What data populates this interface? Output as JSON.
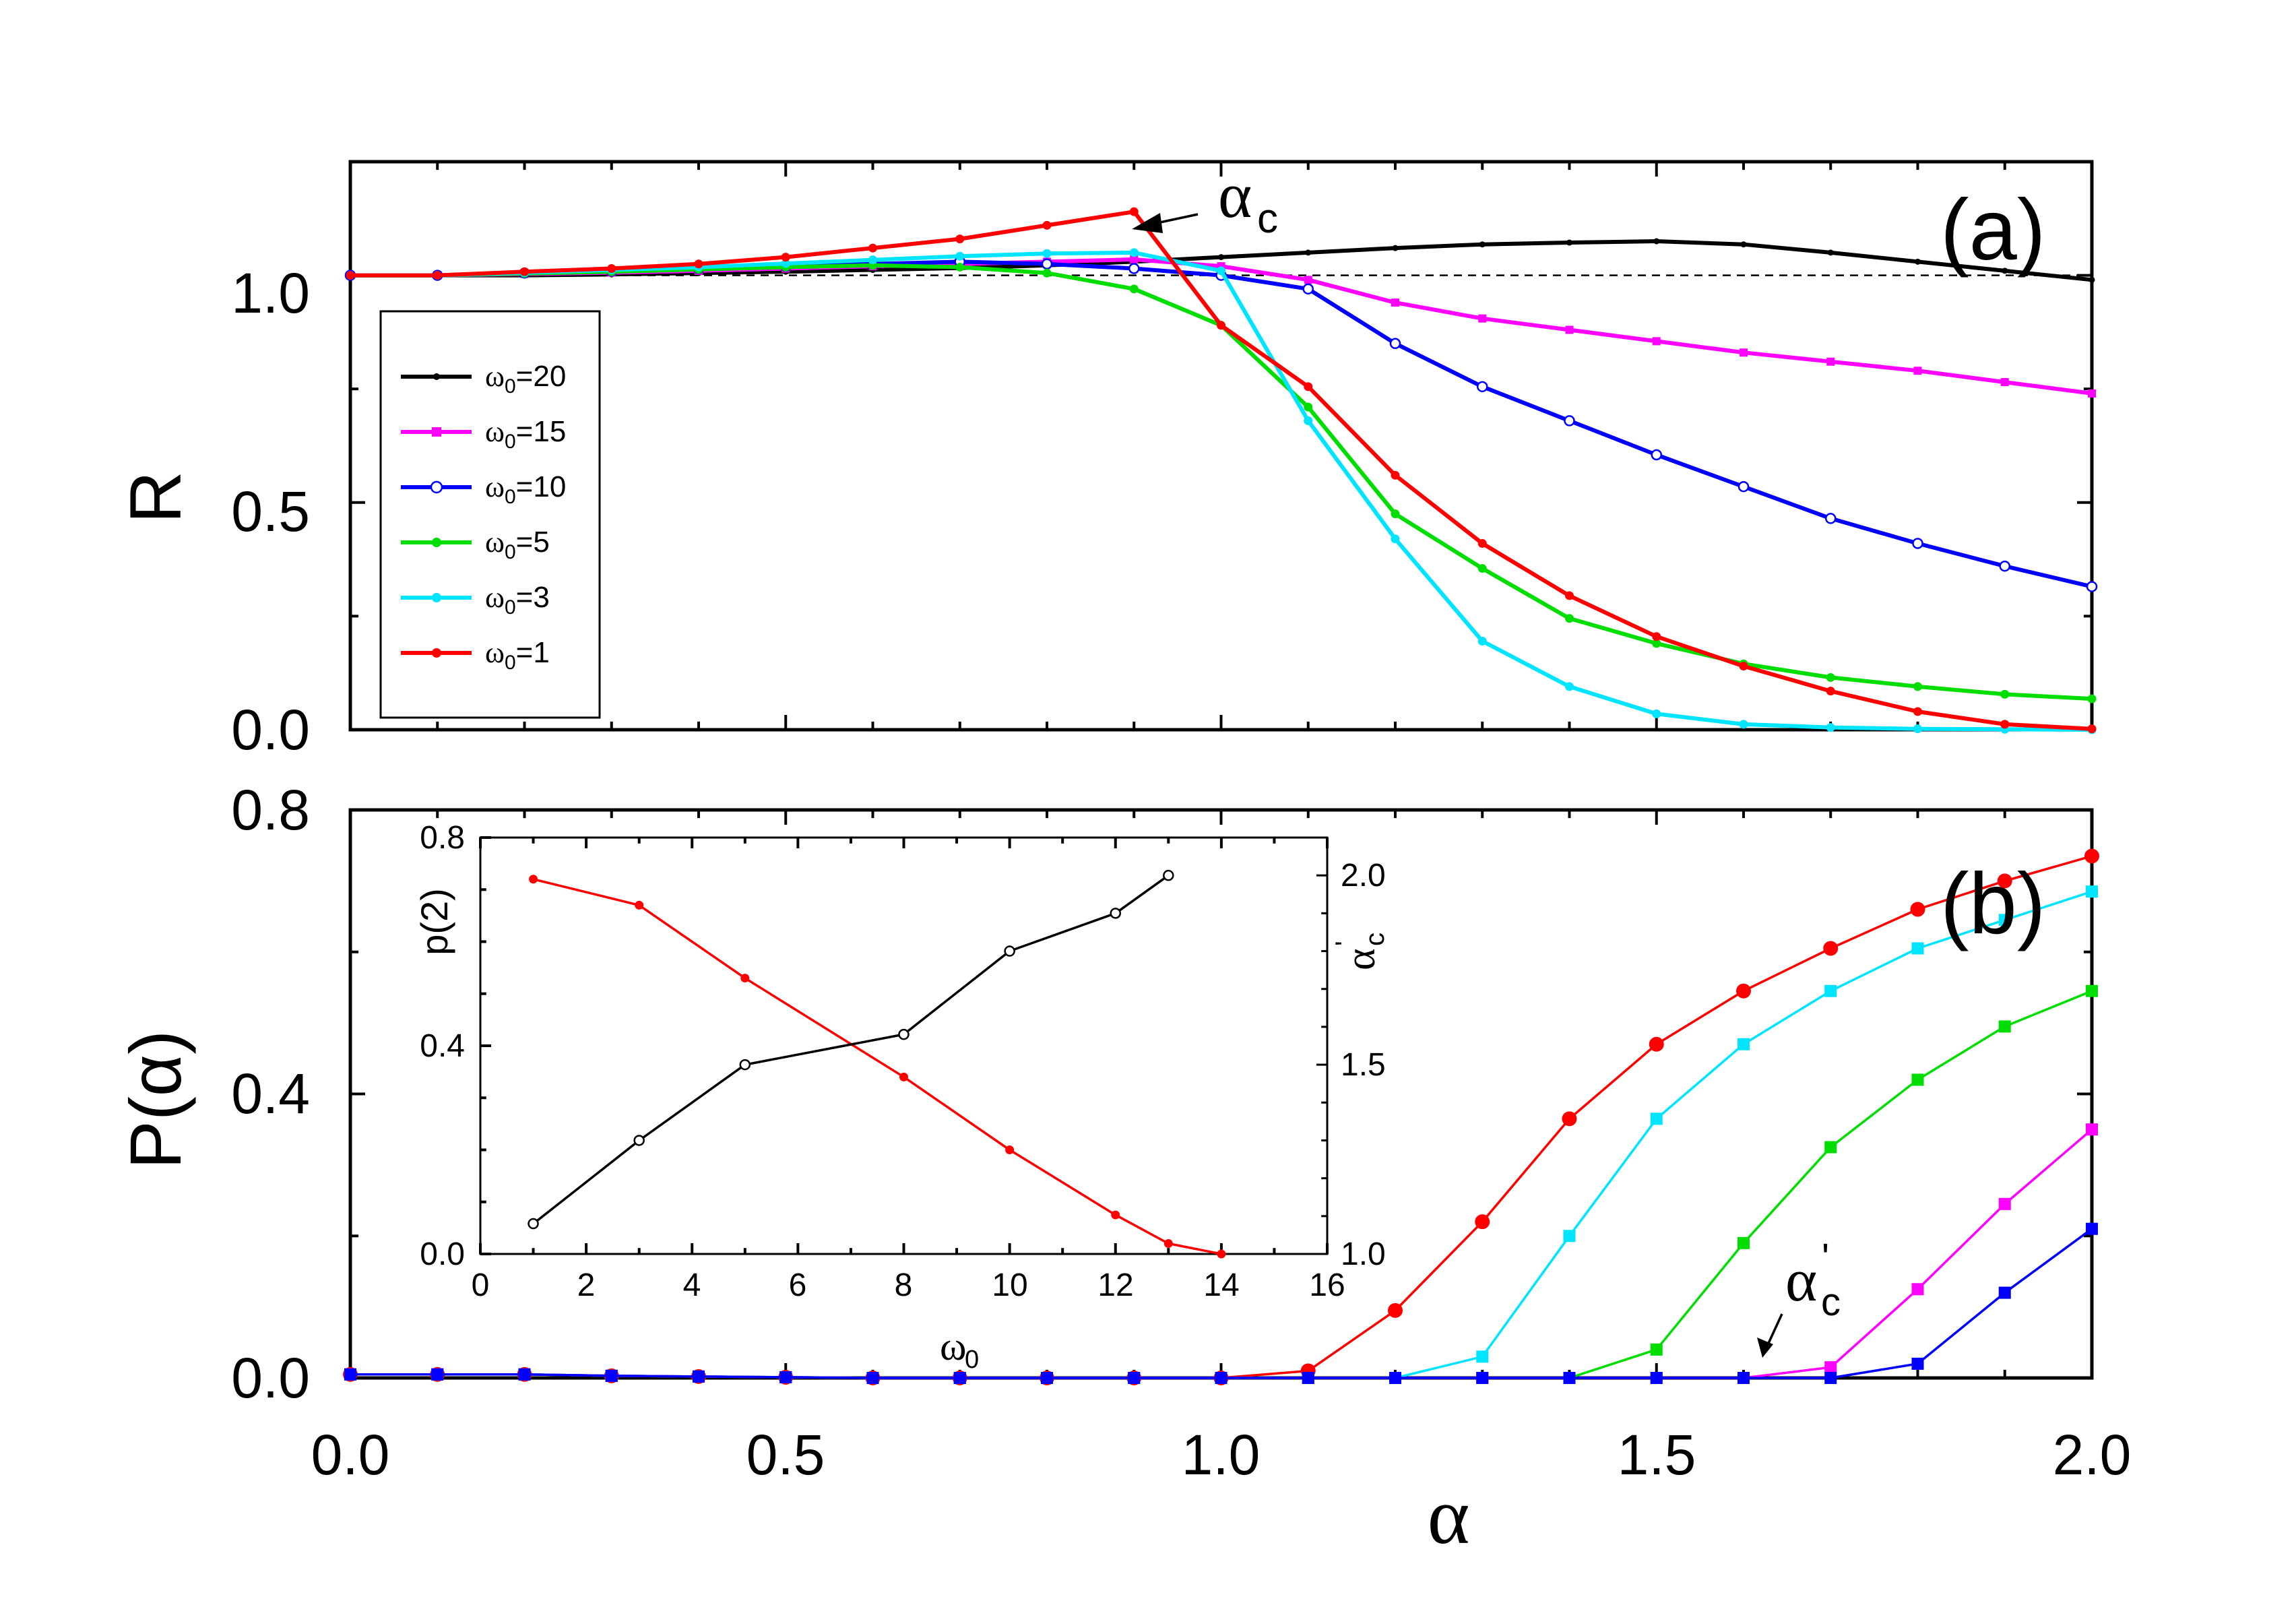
{
  "chart_data": [
    {
      "id": "a",
      "type": "line",
      "panel_label": "(a)",
      "ylabel": "R",
      "xlabel": "",
      "xlim": [
        0,
        2.0
      ],
      "ylim": [
        0,
        1.25
      ],
      "xticks": [
        "0.0",
        "0.5",
        "1.0",
        "1.5",
        "2.0"
      ],
      "yticks": [
        "0.0",
        "0.5",
        "1.0"
      ],
      "reference_line": {
        "y": 1.0,
        "style": "dashed"
      },
      "legend": {
        "position": "left-middle",
        "entries": [
          "20",
          "15",
          "10",
          "5",
          "3",
          "1"
        ],
        "symbol": "ω",
        "subscript": "0"
      },
      "x": [
        0,
        0.1,
        0.2,
        0.3,
        0.4,
        0.5,
        0.6,
        0.7,
        0.8,
        0.9,
        1.0,
        1.1,
        1.2,
        1.3,
        1.4,
        1.5,
        1.6,
        1.7,
        1.8,
        1.9,
        2.0
      ],
      "series": [
        {
          "name": "ω0=20",
          "color": "#000000",
          "marker": "dot-small",
          "values": [
            1.0,
            1.0,
            1.0,
            1.002,
            1.005,
            1.008,
            1.012,
            1.016,
            1.022,
            1.03,
            1.04,
            1.05,
            1.06,
            1.068,
            1.072,
            1.075,
            1.068,
            1.05,
            1.03,
            1.01,
            0.99
          ]
        },
        {
          "name": "ω0=15",
          "color": "#ff00ff",
          "marker": "square-small",
          "values": [
            1.0,
            1.0,
            1.003,
            1.006,
            1.01,
            1.015,
            1.02,
            1.025,
            1.03,
            1.035,
            1.02,
            0.99,
            0.94,
            0.905,
            0.88,
            0.855,
            0.83,
            0.81,
            0.79,
            0.765,
            0.74
          ]
        },
        {
          "name": "ω0=10",
          "color": "#0000ff",
          "marker": "circle-open",
          "values": [
            1.0,
            1.0,
            1.005,
            1.01,
            1.015,
            1.02,
            1.025,
            1.03,
            1.025,
            1.015,
            1.0,
            0.97,
            0.85,
            0.755,
            0.68,
            0.605,
            0.535,
            0.465,
            0.41,
            0.36,
            0.315
          ]
        },
        {
          "name": "ω0=5",
          "color": "#00dd00",
          "marker": "dot",
          "values": [
            1.0,
            1.0,
            1.004,
            1.008,
            1.013,
            1.018,
            1.022,
            1.018,
            1.005,
            0.97,
            0.89,
            0.71,
            0.475,
            0.355,
            0.245,
            0.19,
            0.145,
            0.115,
            0.095,
            0.078,
            0.068
          ]
        },
        {
          "name": "ω0=3",
          "color": "#00e5ff",
          "marker": "dot",
          "values": [
            1.0,
            1.0,
            1.006,
            1.012,
            1.018,
            1.026,
            1.034,
            1.042,
            1.048,
            1.05,
            1.01,
            0.68,
            0.42,
            0.195,
            0.095,
            0.035,
            0.012,
            0.005,
            0.002,
            0.001,
            0.0
          ]
        },
        {
          "name": "ω0=1",
          "color": "#ff0000",
          "marker": "dot",
          "values": [
            1.0,
            1.0,
            1.008,
            1.015,
            1.025,
            1.04,
            1.06,
            1.08,
            1.11,
            1.14,
            0.89,
            0.755,
            0.56,
            0.41,
            0.295,
            0.205,
            0.14,
            0.085,
            0.04,
            0.012,
            0.002
          ]
        }
      ],
      "annotation": {
        "text": "α",
        "subscript": "c",
        "at_x": 0.9,
        "at_y": 1.14
      }
    },
    {
      "id": "b",
      "type": "line",
      "panel_label": "(b)",
      "ylabel": "P(α)",
      "xlabel": "α",
      "xlim": [
        0,
        2.0
      ],
      "ylim": [
        0,
        0.8
      ],
      "xticks": [
        "0.0",
        "0.5",
        "1.0",
        "1.5",
        "2.0"
      ],
      "yticks": [
        "0.0",
        "0.4",
        "0.8"
      ],
      "x": [
        0,
        0.1,
        0.2,
        0.3,
        0.4,
        0.5,
        0.6,
        0.7,
        0.8,
        0.9,
        1.0,
        1.1,
        1.2,
        1.3,
        1.4,
        1.5,
        1.6,
        1.7,
        1.8,
        1.9,
        2.0
      ],
      "series": [
        {
          "name": "ω0=1",
          "color": "#ff0000",
          "marker": "circle",
          "values": [
            0.005,
            0.005,
            0.005,
            0.003,
            0.002,
            0.001,
            0,
            0,
            0,
            0,
            0,
            0.01,
            0.095,
            0.22,
            0.365,
            0.47,
            0.545,
            0.605,
            0.66,
            0.7,
            0.735
          ]
        },
        {
          "name": "ω0=3",
          "color": "#00e5ff",
          "marker": "square",
          "values": [
            0.005,
            0.005,
            0.005,
            0.003,
            0.002,
            0.001,
            0,
            0,
            0,
            0,
            0,
            0,
            0,
            0.03,
            0.2,
            0.365,
            0.47,
            0.545,
            0.605,
            0.645,
            0.685
          ]
        },
        {
          "name": "ω0=5",
          "color": "#00dd00",
          "marker": "square",
          "values": [
            0.005,
            0.005,
            0.005,
            0.003,
            0.002,
            0.001,
            0,
            0,
            0,
            0,
            0,
            0,
            0,
            0,
            0,
            0.04,
            0.19,
            0.325,
            0.42,
            0.495,
            0.545
          ]
        },
        {
          "name": "ω0=15",
          "color": "#ff00ff",
          "marker": "square",
          "values": [
            0.005,
            0.005,
            0.005,
            0.003,
            0.002,
            0.001,
            0,
            0,
            0,
            0,
            0,
            0,
            0,
            0,
            0,
            0,
            0,
            0.015,
            0.125,
            0.245,
            0.35
          ]
        },
        {
          "name": "ω0=10",
          "color": "#0000ff",
          "marker": "square",
          "values": [
            0.005,
            0.005,
            0.005,
            0.003,
            0.002,
            0.001,
            0,
            0,
            0,
            0,
            0,
            0,
            0,
            0,
            0,
            0,
            0,
            0,
            0.02,
            0.12,
            0.21
          ]
        }
      ],
      "annotation": {
        "text": "α",
        "subscript": "c",
        "prime": "'",
        "at_x": 1.62,
        "at_y": 0.0
      }
    },
    {
      "id": "inset",
      "type": "line",
      "xlabel": "ω",
      "xlabel_sub": "0",
      "ylabel_left": "p(2)",
      "ylabel_right": "α",
      "ylabel_right_sub": "c",
      "ylabel_right_prime": "'",
      "xlim": [
        0,
        16
      ],
      "ylim_left": [
        0,
        0.8
      ],
      "ylim_right": [
        1.0,
        2.1
      ],
      "xticks": [
        "0",
        "2",
        "4",
        "6",
        "8",
        "10",
        "12",
        "14",
        "16"
      ],
      "yticks_left": [
        "0.0",
        "0.4",
        "0.8"
      ],
      "yticks_right": [
        "1.0",
        "1.5",
        "2.0"
      ],
      "series": [
        {
          "name": "p(2)",
          "axis": "left",
          "color": "#ff0000",
          "marker": "dot",
          "x": [
            1,
            3,
            5,
            8,
            10,
            12,
            13,
            14
          ],
          "values": [
            0.72,
            0.67,
            0.53,
            0.34,
            0.2,
            0.075,
            0.02,
            0.0
          ]
        },
        {
          "name": "α'c",
          "axis": "right",
          "color": "#000000",
          "marker": "circle-open",
          "x": [
            1,
            3,
            5,
            8,
            10,
            12,
            13
          ],
          "values": [
            1.08,
            1.3,
            1.5,
            1.58,
            1.8,
            1.9,
            2.0
          ]
        }
      ]
    }
  ]
}
